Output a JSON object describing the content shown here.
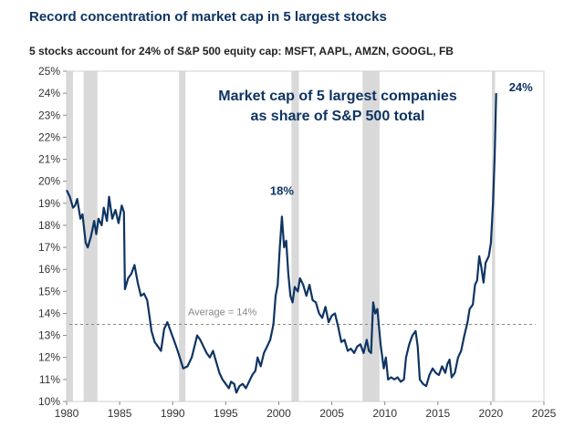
{
  "title": "Record concentration of market cap in 5 largest stocks",
  "subtitle": "5 stocks account for 24% of S&P 500 equity cap: MSFT, AAPL, AMZN, GOOGL, FB",
  "chart_data": {
    "type": "line",
    "title": "Record concentration of market cap in 5 largest stocks",
    "xlabel": "",
    "ylabel": "",
    "xlim": [
      1980,
      2025
    ],
    "ylim": [
      10,
      25
    ],
    "x_ticks": [
      "1980",
      "1985",
      "1990",
      "1995",
      "2000",
      "2005",
      "2010",
      "2015",
      "2020",
      "2025"
    ],
    "y_ticks": [
      "10%",
      "11%",
      "12%",
      "13%",
      "14%",
      "15%",
      "16%",
      "17%",
      "18%",
      "19%",
      "20%",
      "21%",
      "22%",
      "23%",
      "24%",
      "25%"
    ],
    "series_label_line1": "Market cap of 5 largest companies",
    "series_label_line2": "as share of S&P 500 total",
    "color": "#0e3463",
    "recession_color": "#d9d9d9",
    "recessions": [
      [
        1980.0,
        1980.6
      ],
      [
        1981.6,
        1982.9
      ],
      [
        1990.6,
        1991.2
      ],
      [
        2001.2,
        2001.9
      ],
      [
        2007.9,
        2009.5
      ],
      [
        2020.1,
        2020.4
      ]
    ],
    "average": {
      "value": 13.5,
      "label": "Average = 14%"
    },
    "annotations": [
      {
        "x": 2000.3,
        "y": 18.4,
        "text": "18%"
      },
      {
        "x": 2020.5,
        "y": 24.0,
        "text": "24%"
      }
    ],
    "x": [
      1980.0,
      1980.3,
      1980.6,
      1980.8,
      1981.0,
      1981.3,
      1981.5,
      1981.8,
      1982.0,
      1982.3,
      1982.6,
      1982.8,
      1983.0,
      1983.3,
      1983.5,
      1983.8,
      1984.0,
      1984.3,
      1984.6,
      1984.9,
      1985.2,
      1985.4,
      1985.5,
      1985.8,
      1986.1,
      1986.4,
      1986.7,
      1987.0,
      1987.3,
      1987.6,
      1987.8,
      1988.0,
      1988.3,
      1988.6,
      1988.9,
      1989.2,
      1989.5,
      1989.8,
      1990.1,
      1990.4,
      1990.8,
      1991.0,
      1991.4,
      1991.8,
      1992.0,
      1992.3,
      1992.6,
      1992.9,
      1993.2,
      1993.5,
      1993.8,
      1994.1,
      1994.4,
      1994.7,
      1995.0,
      1995.3,
      1995.5,
      1995.8,
      1996.0,
      1996.3,
      1996.6,
      1996.9,
      1997.2,
      1997.5,
      1997.8,
      1998.0,
      1998.3,
      1998.6,
      1998.9,
      1999.2,
      1999.5,
      1999.7,
      1999.9,
      2000.1,
      2000.3,
      2000.5,
      2000.7,
      2000.9,
      2001.1,
      2001.3,
      2001.5,
      2001.8,
      2002.0,
      2002.3,
      2002.6,
      2002.9,
      2003.2,
      2003.5,
      2003.8,
      2004.1,
      2004.4,
      2004.7,
      2005.0,
      2005.3,
      2005.6,
      2005.9,
      2006.2,
      2006.5,
      2006.8,
      2007.1,
      2007.4,
      2007.7,
      2008.0,
      2008.3,
      2008.5,
      2008.7,
      2008.9,
      2009.1,
      2009.3,
      2009.6,
      2009.9,
      2010.1,
      2010.3,
      2010.6,
      2010.9,
      2011.2,
      2011.5,
      2011.8,
      2012.0,
      2012.3,
      2012.6,
      2012.9,
      2013.1,
      2013.3,
      2013.6,
      2013.9,
      2014.2,
      2014.5,
      2014.8,
      2015.1,
      2015.4,
      2015.7,
      2015.9,
      2016.1,
      2016.3,
      2016.6,
      2016.9,
      2017.2,
      2017.5,
      2017.8,
      2018.0,
      2018.3,
      2018.5,
      2018.7,
      2018.9,
      2019.1,
      2019.3,
      2019.5,
      2019.8,
      2020.0,
      2020.2,
      2020.35,
      2020.5
    ],
    "y": [
      19.6,
      19.3,
      18.8,
      18.9,
      19.2,
      18.3,
      18.5,
      17.2,
      17.0,
      17.5,
      18.2,
      17.6,
      18.3,
      18.0,
      18.8,
      18.2,
      19.3,
      18.3,
      18.7,
      18.1,
      18.9,
      18.6,
      15.1,
      15.6,
      15.8,
      16.2,
      15.4,
      14.8,
      14.9,
      14.6,
      13.9,
      13.2,
      12.7,
      12.5,
      12.3,
      13.3,
      13.6,
      13.2,
      12.8,
      12.4,
      11.8,
      11.5,
      11.6,
      12.0,
      12.4,
      13.0,
      12.8,
      12.5,
      12.2,
      12.0,
      12.3,
      11.8,
      11.3,
      11.0,
      10.8,
      10.6,
      10.9,
      10.8,
      10.4,
      10.7,
      10.8,
      10.6,
      10.9,
      11.2,
      11.4,
      12.0,
      11.6,
      12.2,
      12.5,
      12.8,
      13.5,
      14.8,
      15.3,
      17.0,
      18.4,
      17.0,
      17.3,
      15.8,
      14.8,
      14.5,
      15.2,
      15.0,
      15.6,
      15.3,
      14.8,
      15.3,
      14.6,
      14.5,
      14.0,
      13.8,
      14.3,
      13.6,
      13.9,
      14.0,
      13.4,
      12.7,
      12.8,
      12.3,
      12.4,
      12.2,
      12.5,
      12.6,
      12.2,
      12.8,
      12.3,
      12.2,
      14.5,
      14.0,
      14.2,
      12.6,
      11.5,
      12.0,
      11.0,
      11.1,
      11.0,
      11.1,
      10.9,
      11.0,
      12.0,
      12.6,
      13.0,
      13.2,
      12.5,
      11.0,
      10.8,
      10.7,
      11.2,
      11.5,
      11.3,
      11.2,
      11.6,
      11.3,
      11.7,
      11.9,
      11.1,
      11.3,
      12.0,
      12.3,
      13.0,
      13.6,
      14.2,
      14.4,
      15.3,
      15.5,
      16.6,
      16.1,
      15.4,
      16.3,
      16.6,
      17.2,
      19.0,
      21.1,
      24.0
    ]
  }
}
